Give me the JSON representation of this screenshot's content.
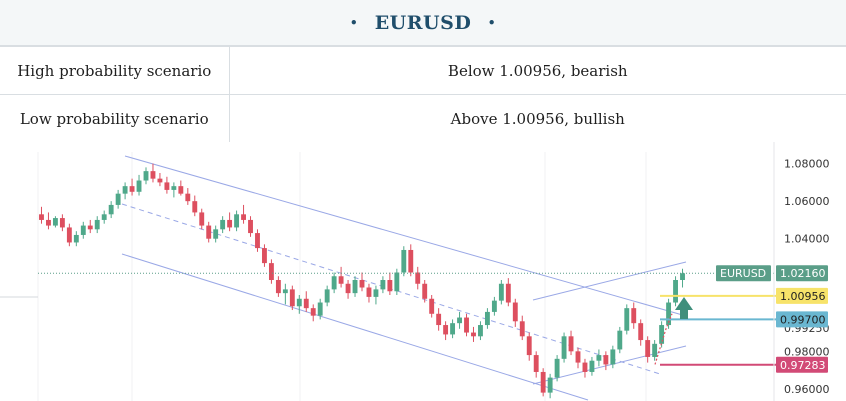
{
  "header": {
    "bullet": "•",
    "title": "EURUSD"
  },
  "scenarios": [
    {
      "label": "High probability scenario",
      "value": "Below 1.00956, bearish"
    },
    {
      "label": "Low probability scenario",
      "value": "Above 1.00956, bullish"
    }
  ],
  "chart_data": {
    "type": "candlestick",
    "symbol": "EURUSD",
    "y_ticks": [
      "1.08000",
      "1.06000",
      "1.04000",
      "0.99250",
      "0.98000",
      "0.96000"
    ],
    "ylim": [
      0.953,
      1.083
    ],
    "last_price": {
      "label": "EURUSD",
      "value": "1.02160",
      "price": 1.0216,
      "color": "#5a9e88"
    },
    "levels": [
      {
        "name": "resistance",
        "value": "1.00956",
        "price": 1.00956,
        "color": "#f7e36a",
        "text_color": "#1f1f1f"
      },
      {
        "name": "pivot",
        "value": "0.99700",
        "price": 0.997,
        "color": "#6ab7d1",
        "text_color": "#1f1f1f"
      },
      {
        "name": "support",
        "value": "0.97283",
        "price": 0.97283,
        "color": "#d24a76",
        "text_color": "#ffffff"
      }
    ],
    "candles": [
      [
        1.053,
        1.057,
        1.048,
        1.05
      ],
      [
        1.05,
        1.054,
        1.045,
        1.047
      ],
      [
        1.047,
        1.052,
        1.046,
        1.051
      ],
      [
        1.051,
        1.053,
        1.044,
        1.046
      ],
      [
        1.046,
        1.048,
        1.036,
        1.038
      ],
      [
        1.038,
        1.044,
        1.036,
        1.042
      ],
      [
        1.042,
        1.049,
        1.04,
        1.047
      ],
      [
        1.047,
        1.05,
        1.043,
        1.045
      ],
      [
        1.045,
        1.052,
        1.043,
        1.05
      ],
      [
        1.05,
        1.055,
        1.048,
        1.053
      ],
      [
        1.053,
        1.06,
        1.051,
        1.058
      ],
      [
        1.058,
        1.066,
        1.056,
        1.064
      ],
      [
        1.064,
        1.07,
        1.061,
        1.068
      ],
      [
        1.068,
        1.072,
        1.063,
        1.065
      ],
      [
        1.065,
        1.074,
        1.063,
        1.071
      ],
      [
        1.071,
        1.078,
        1.069,
        1.076
      ],
      [
        1.076,
        1.08,
        1.07,
        1.072
      ],
      [
        1.072,
        1.075,
        1.068,
        1.07
      ],
      [
        1.07,
        1.073,
        1.064,
        1.066
      ],
      [
        1.066,
        1.07,
        1.062,
        1.068
      ],
      [
        1.068,
        1.071,
        1.063,
        1.064
      ],
      [
        1.064,
        1.067,
        1.058,
        1.06
      ],
      [
        1.06,
        1.063,
        1.052,
        1.054
      ],
      [
        1.054,
        1.056,
        1.045,
        1.047
      ],
      [
        1.047,
        1.049,
        1.038,
        1.04
      ],
      [
        1.04,
        1.047,
        1.038,
        1.045
      ],
      [
        1.045,
        1.052,
        1.043,
        1.05
      ],
      [
        1.05,
        1.054,
        1.044,
        1.046
      ],
      [
        1.046,
        1.055,
        1.044,
        1.053
      ],
      [
        1.053,
        1.058,
        1.048,
        1.05
      ],
      [
        1.05,
        1.052,
        1.041,
        1.043
      ],
      [
        1.043,
        1.045,
        1.033,
        1.035
      ],
      [
        1.035,
        1.037,
        1.025,
        1.027
      ],
      [
        1.027,
        1.029,
        1.016,
        1.018
      ],
      [
        1.018,
        1.02,
        1.009,
        1.011
      ],
      [
        1.011,
        1.016,
        1.005,
        1.013
      ],
      [
        1.013,
        1.015,
        1.002,
        1.004
      ],
      [
        1.004,
        1.01,
        1.0,
        1.008
      ],
      [
        1.008,
        1.012,
        1.001,
        1.003
      ],
      [
        1.003,
        1.005,
        0.996,
        0.999
      ],
      [
        0.999,
        1.008,
        0.997,
        1.006
      ],
      [
        1.006,
        1.015,
        1.004,
        1.013
      ],
      [
        1.013,
        1.022,
        1.011,
        1.02
      ],
      [
        1.02,
        1.025,
        1.014,
        1.016
      ],
      [
        1.016,
        1.018,
        1.008,
        1.011
      ],
      [
        1.011,
        1.02,
        1.009,
        1.018
      ],
      [
        1.018,
        1.022,
        1.012,
        1.014
      ],
      [
        1.014,
        1.016,
        1.006,
        1.009
      ],
      [
        1.009,
        1.015,
        1.005,
        1.013
      ],
      [
        1.013,
        1.02,
        1.011,
        1.018
      ],
      [
        1.018,
        1.022,
        1.01,
        1.012
      ],
      [
        1.012,
        1.024,
        1.01,
        1.022
      ],
      [
        1.022,
        1.036,
        1.02,
        1.034
      ],
      [
        1.034,
        1.037,
        1.02,
        1.022
      ],
      [
        1.022,
        1.025,
        1.013,
        1.016
      ],
      [
        1.016,
        1.018,
        1.006,
        1.008
      ],
      [
        1.008,
        1.01,
        0.998,
        1.0
      ],
      [
        1.0,
        1.003,
        0.991,
        0.994
      ],
      [
        0.994,
        0.996,
        0.986,
        0.989
      ],
      [
        0.989,
        0.997,
        0.987,
        0.995
      ],
      [
        0.995,
        1.001,
        0.992,
        0.998
      ],
      [
        0.998,
        1.0,
        0.988,
        0.99
      ],
      [
        0.99,
        0.993,
        0.985,
        0.988
      ],
      [
        0.988,
        0.996,
        0.986,
        0.994
      ],
      [
        0.994,
        1.003,
        0.992,
        1.001
      ],
      [
        1.001,
        1.009,
        0.999,
        1.007
      ],
      [
        1.007,
        1.018,
        1.005,
        1.016
      ],
      [
        1.016,
        1.019,
        1.004,
        1.006
      ],
      [
        1.006,
        1.008,
        0.993,
        0.996
      ],
      [
        0.996,
        0.999,
        0.986,
        0.988
      ],
      [
        0.988,
        0.99,
        0.975,
        0.978
      ],
      [
        0.978,
        0.98,
        0.966,
        0.969
      ],
      [
        0.969,
        0.971,
        0.956,
        0.958
      ],
      [
        0.958,
        0.968,
        0.955,
        0.966
      ],
      [
        0.966,
        0.978,
        0.964,
        0.976
      ],
      [
        0.976,
        0.99,
        0.974,
        0.988
      ],
      [
        0.988,
        0.991,
        0.978,
        0.98
      ],
      [
        0.98,
        0.982,
        0.971,
        0.974
      ],
      [
        0.974,
        0.976,
        0.966,
        0.969
      ],
      [
        0.969,
        0.977,
        0.967,
        0.975
      ],
      [
        0.975,
        0.981,
        0.972,
        0.978
      ],
      [
        0.978,
        0.98,
        0.97,
        0.973
      ],
      [
        0.973,
        0.983,
        0.971,
        0.981
      ],
      [
        0.981,
        0.993,
        0.979,
        0.991
      ],
      [
        0.991,
        1.005,
        0.989,
        1.003
      ],
      [
        1.003,
        1.006,
        0.992,
        0.995
      ],
      [
        0.995,
        0.997,
        0.983,
        0.986
      ],
      [
        0.986,
        0.988,
        0.974,
        0.977
      ],
      [
        0.977,
        0.986,
        0.975,
        0.984
      ],
      [
        0.984,
        0.996,
        0.982,
        0.994
      ],
      [
        0.994,
        1.008,
        0.992,
        1.006
      ],
      [
        1.006,
        1.02,
        1.004,
        1.018
      ],
      [
        1.018,
        1.024,
        1.014,
        1.0216
      ]
    ]
  }
}
